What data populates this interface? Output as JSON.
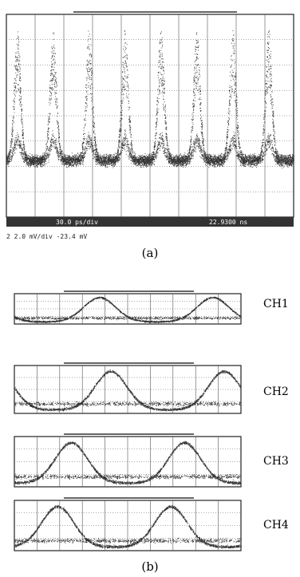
{
  "panel_a": {
    "status_left": "30.0 ps/div",
    "status_right": "22.9300 ns",
    "channel_info": "2  2.0 mV/div    -23.4 mV",
    "caption": "(a)"
  },
  "panel_b": {
    "channels": [
      "CH1",
      "CH2",
      "CH3",
      "CH4"
    ],
    "caption": "(b)"
  }
}
